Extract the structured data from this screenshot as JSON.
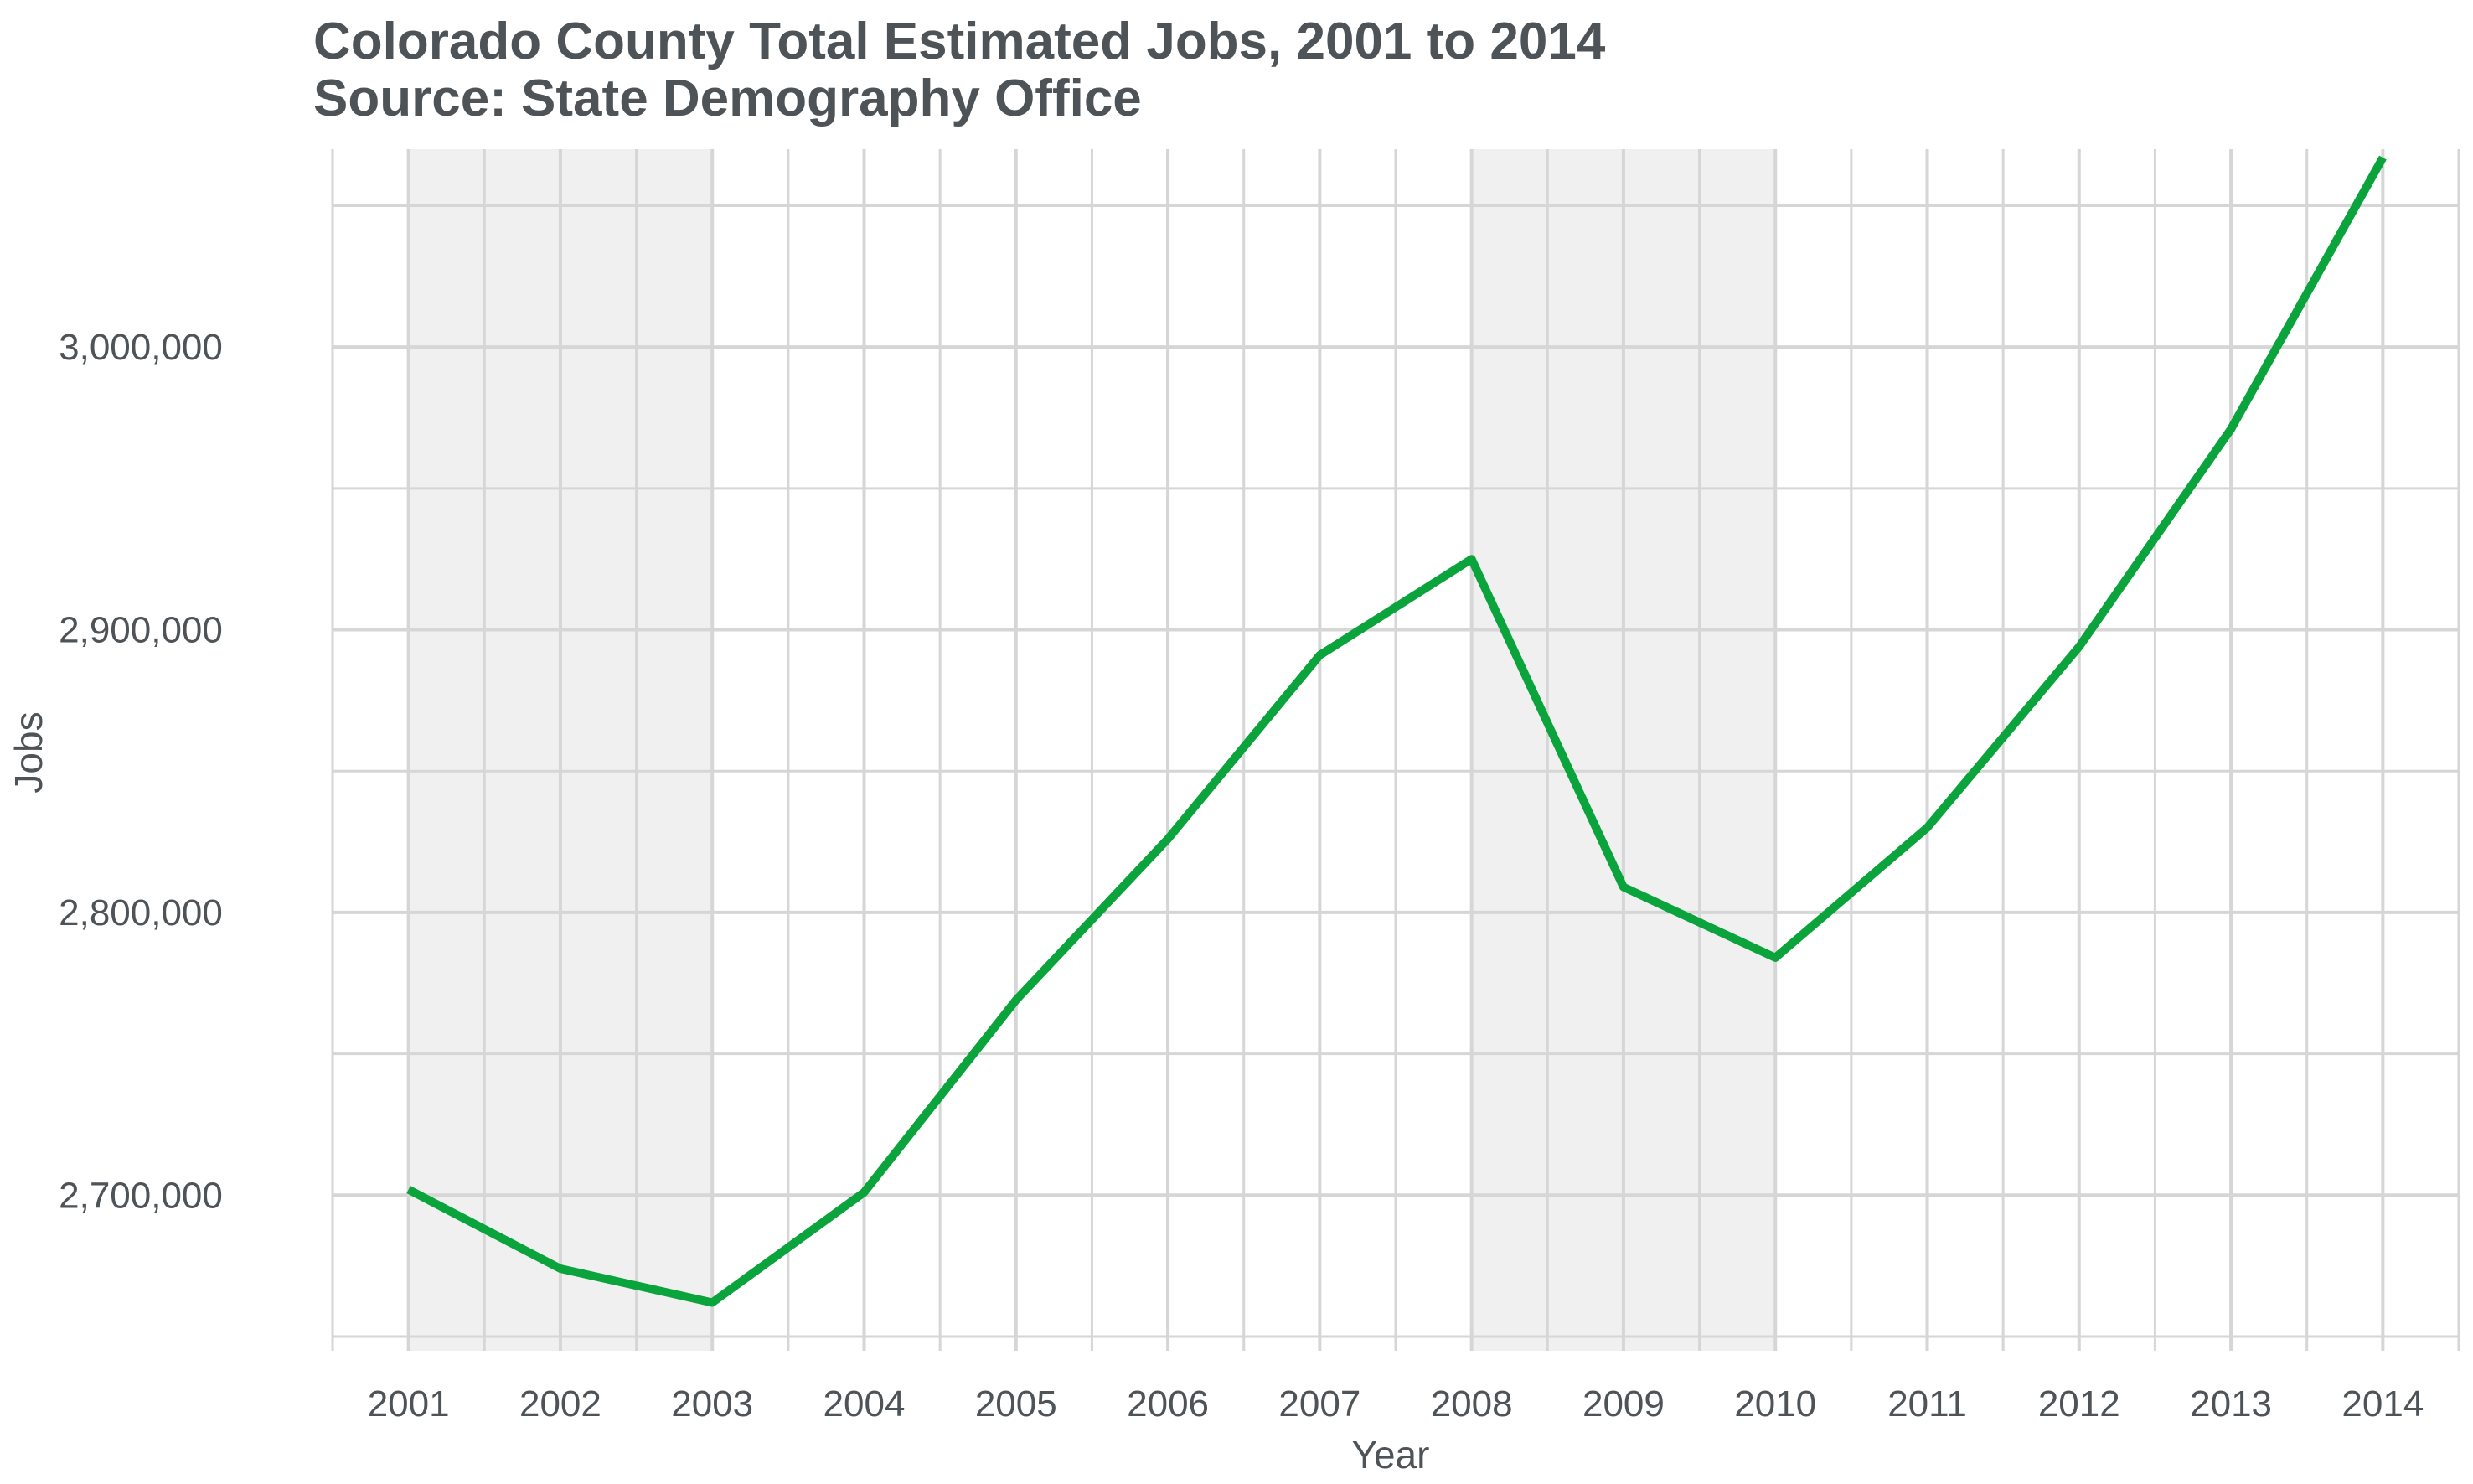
{
  "chart_data": {
    "type": "line",
    "title": "Colorado County Total Estimated Jobs, 2001 to 2014",
    "subtitle": "Source: State Demography Office",
    "xlabel": "Year",
    "ylabel": "Jobs",
    "x": [
      2001,
      2002,
      2003,
      2004,
      2005,
      2006,
      2007,
      2008,
      2009,
      2010,
      2011,
      2012,
      2013,
      2014
    ],
    "x_tick_labels": [
      "2001",
      "2002",
      "2003",
      "2004",
      "2005",
      "2006",
      "2007",
      "2008",
      "2009",
      "2010",
      "2011",
      "2012",
      "2013",
      "2014"
    ],
    "series": [
      {
        "values": [
          2702000,
          2674000,
          2662000,
          2701000,
          2769000,
          2826000,
          2891000,
          2925000,
          2809000,
          2784000,
          2830000,
          2894000,
          2971000,
          3067000
        ]
      }
    ],
    "xlim": [
      2000.5,
      2014.5
    ],
    "ylim": [
      2650000,
      3070000
    ],
    "y_ticks": [
      2700000,
      2800000,
      2900000,
      3000000
    ],
    "y_tick_labels": [
      "2,700,000",
      "2,800,000",
      "2,900,000",
      "3,000,000"
    ],
    "shaded_ranges": [
      [
        2001,
        2003
      ],
      [
        2008,
        2010
      ]
    ],
    "grid": true,
    "legend": "none",
    "colors": {
      "line": "#0aa33c",
      "shade": "#f0f0f0",
      "grid": "#d6d6d6",
      "text": "#4d5357"
    }
  }
}
